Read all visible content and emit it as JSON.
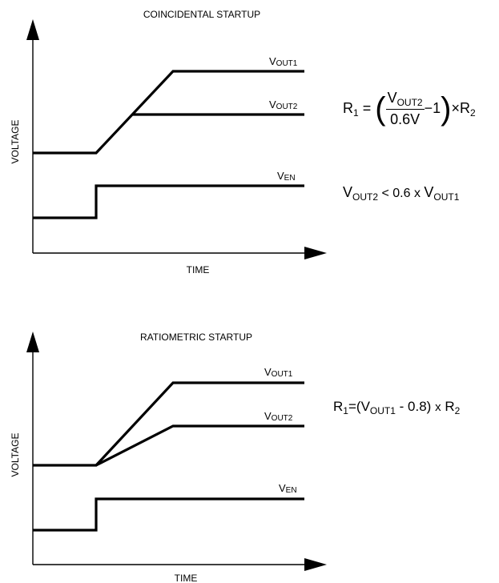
{
  "panels": [
    {
      "title": "COINCIDENTAL STARTUP",
      "ylabel": "VOLTAGE",
      "xlabel": "TIME",
      "signals": {
        "vout1": {
          "main": "V",
          "sub": "OUT1"
        },
        "vout2": {
          "main": "V",
          "sub": "OUT2"
        },
        "ven": {
          "main": "V",
          "sub": "EN"
        }
      },
      "equation": {
        "lhs": "R",
        "lhs_sub": "1",
        "eq": "=",
        "num_main": "V",
        "num_sub": "OUT2",
        "den": "0.6V",
        "minus_one": "−1",
        "times": "×",
        "rhs": "R",
        "rhs_sub": "2"
      },
      "condition": {
        "a_main": "V",
        "a_sub": "OUT2",
        "middle": " < 0.6 x ",
        "b_main": "V",
        "b_sub": "OUT1"
      }
    },
    {
      "title": "RATIOMETRIC STARTUP",
      "ylabel": "VOLTAGE",
      "xlabel": "TIME",
      "signals": {
        "vout1": {
          "main": "V",
          "sub": "OUT1"
        },
        "vout2": {
          "main": "V",
          "sub": "OUT2"
        },
        "ven": {
          "main": "V",
          "sub": "EN"
        }
      },
      "equation": {
        "lhs": "R",
        "lhs_sub": "1",
        "eq": "=",
        "open": "(",
        "a_main": "V",
        "a_sub": "OUT1",
        "middle": " - 0.8)",
        "times": "x",
        "rhs": "R",
        "rhs_sub": "2"
      }
    }
  ]
}
